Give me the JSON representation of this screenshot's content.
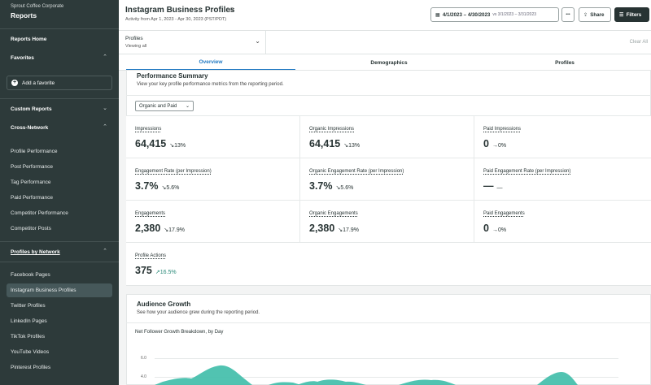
{
  "sidebar": {
    "org": "Sprout Coffee Corporate",
    "title": "Reports",
    "reports_home": "Reports Home",
    "favorites": "Favorites",
    "add_favorite": "Add a favorite",
    "custom_reports": "Custom Reports",
    "cross_network": "Cross-Network",
    "cross_items": [
      "Profile Performance",
      "Post Performance",
      "Tag Performance",
      "Paid Performance",
      "Competitor Performance",
      "Competitor Posts"
    ],
    "profiles_by_network": "Profiles by Network",
    "network_items": [
      "Facebook Pages",
      "Instagram Business Profiles",
      "Twitter Profiles",
      "LinkedIn Pages",
      "TikTok Profiles",
      "YouTube Videos",
      "Pinterest Profiles"
    ]
  },
  "header": {
    "title": "Instagram Business Profiles",
    "activity": "Activity from Apr 1, 2023 - Apr 30, 2023 (PST/PDT)",
    "date_range": "4/1/2023 – 4/30/2023",
    "compare": "vs 3/1/2023 – 3/31/2023",
    "more": "•••",
    "share": "Share",
    "filters": "Filters"
  },
  "profiles_bar": {
    "label": "Profiles",
    "sub": "Viewing all",
    "clear": "Clear All"
  },
  "tabs": [
    "Overview",
    "Demographics",
    "Profiles"
  ],
  "performance": {
    "title": "Performance Summary",
    "subtitle": "View your key profile performance metrics from the reporting period.",
    "filter": "Organic and Paid",
    "metrics": [
      {
        "label": "Impressions",
        "value": "64,415",
        "change": "↘13%",
        "dir": "down"
      },
      {
        "label": "Organic Impressions",
        "value": "64,415",
        "change": "↘13%",
        "dir": "down"
      },
      {
        "label": "Paid Impressions",
        "value": "0",
        "change": "→0%",
        "dir": "flat"
      },
      {
        "label": "Engagement Rate (per Impression)",
        "value": "3.7%",
        "change": "↘5.6%",
        "dir": "down"
      },
      {
        "label": "Organic Engagement Rate (per Impression)",
        "value": "3.7%",
        "change": "↘5.6%",
        "dir": "down"
      },
      {
        "label": "Paid Engagement Rate (per Impression)",
        "value": "—",
        "change": "—",
        "dir": "flat"
      },
      {
        "label": "Engagements",
        "value": "2,380",
        "change": "↘17.9%",
        "dir": "down"
      },
      {
        "label": "Organic Engagements",
        "value": "2,380",
        "change": "↘17.9%",
        "dir": "down"
      },
      {
        "label": "Paid Engagements",
        "value": "0",
        "change": "→0%",
        "dir": "flat"
      },
      {
        "label": "Profile Actions",
        "value": "375",
        "change": "↗16.5%",
        "dir": "up"
      }
    ]
  },
  "audience": {
    "title": "Audience Growth",
    "subtitle": "See how your audience grew during the reporting period.",
    "chart_title": "Net Follower Growth Breakdown, by Day",
    "y_ticks": [
      "6.0",
      "4.0"
    ]
  },
  "colors": {
    "sidebar_bg": "#2d3a3a",
    "accent": "#2079c3",
    "area": "#3ebca8"
  }
}
